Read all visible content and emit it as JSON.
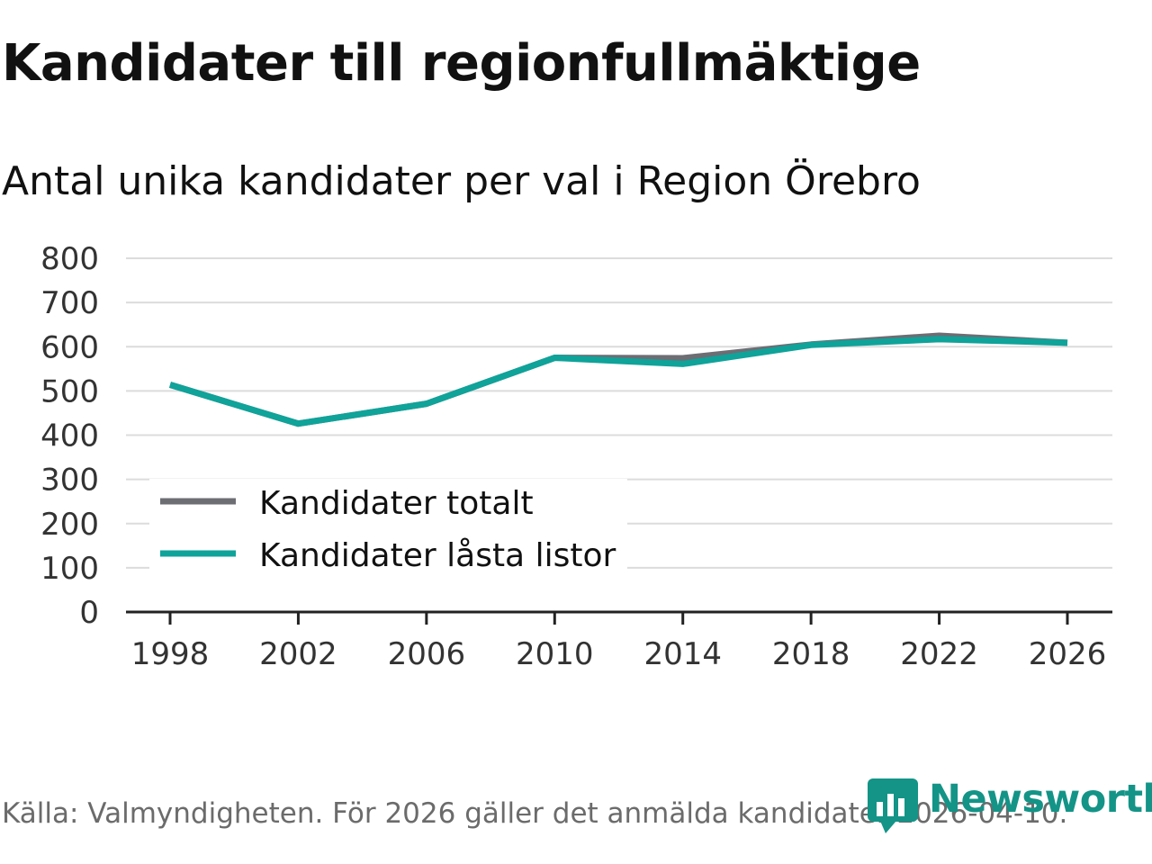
{
  "header": {
    "title": "Kandidater till regionfullmäktige",
    "subtitle": "Antal unika kandidater per val i Region Örebro"
  },
  "footer": {
    "source": "Källa: Valmyndigheten. För 2026 gäller det anmälda kandidater 2026-04-10."
  },
  "brand": {
    "name": "Newsworthy",
    "icon": "bar-chart-speech-bubble-icon",
    "color": "#139487"
  },
  "colors": {
    "totalt": "#6d6d74",
    "lasta": "#0fa39a",
    "grid": "#dcdcdc",
    "axis": "#222222"
  },
  "chart_data": {
    "type": "line",
    "title": "Kandidater till regionfullmäktige",
    "subtitle": "Antal unika kandidater per val i Region Örebro",
    "xlabel": "",
    "ylabel": "",
    "x": [
      1998,
      2002,
      2006,
      2010,
      2014,
      2018,
      2022,
      2026
    ],
    "xticks": [
      "1998",
      "2002",
      "2006",
      "2010",
      "2014",
      "2018",
      "2022",
      "2026"
    ],
    "ylim": [
      0,
      800
    ],
    "yticks": [
      "0",
      "100",
      "200",
      "300",
      "400",
      "500",
      "600",
      "700",
      "800"
    ],
    "grid": true,
    "legend_position": "bottom-left",
    "series": [
      {
        "name": "Kandidater totalt",
        "values": [
          514,
          426,
          471,
          575,
          574,
          605,
          625,
          609
        ]
      },
      {
        "name": "Kandidater låsta listor",
        "values": [
          514,
          426,
          471,
          575,
          561,
          604,
          617,
          609
        ]
      }
    ]
  }
}
